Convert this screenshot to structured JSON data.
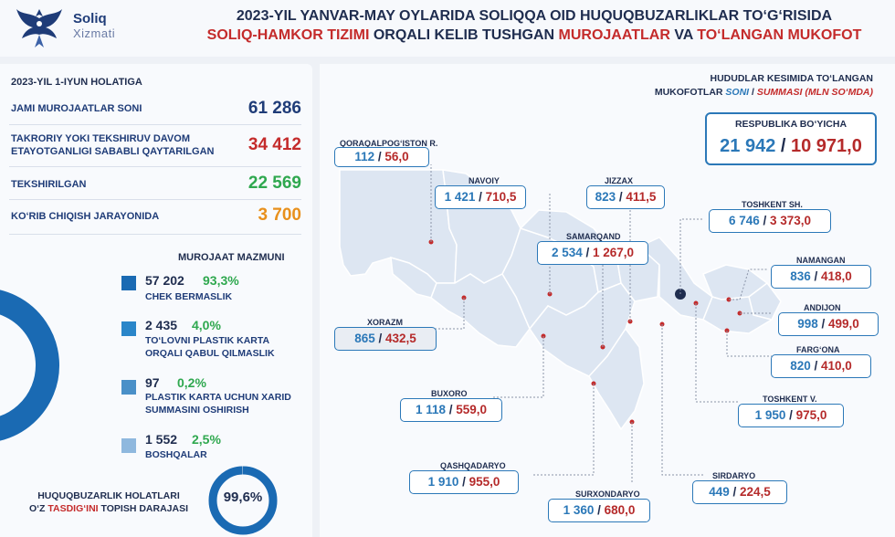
{
  "header": {
    "logo_word1": "Soliq",
    "logo_word2": "Xizmati",
    "title_line1": "2023-YIL YANVAR-MAY OYLARIDA SOLIQQA OID HUQUQBUZARLIKLAR TO‘G‘RISIDA",
    "title_line2_a": "SOLIQ-HAMKOR TIZIMI",
    "title_line2_b": " ORQALI KELIB TUSHGAN ",
    "title_line2_c": "MUROJAATLAR",
    "title_line2_d": " VA ",
    "title_line2_e": "TO‘LANGAN MUKOFOT"
  },
  "left": {
    "date_label": "2023-YIL 1-IYUN HOLATIGA",
    "stats": [
      {
        "label": "JAMI MUROJAATLAR SONI",
        "value": "61 286",
        "color": "#1f3c78"
      },
      {
        "label": "TAKRORIY YOKI TEKSHIRUV DAVOM ETAYOTGANLIGI SABABLI QAYTARILGAN",
        "value": "34 412",
        "color": "#c42b2b"
      },
      {
        "label": "TEKSHIRILGAN",
        "value": "22 569",
        "color": "#2fa84f"
      },
      {
        "label": "KO‘RIB CHIQISH JARAYONIDA",
        "value": "3 700",
        "color": "#e8901c"
      }
    ],
    "content_title": "MUROJAAT MAZMUNI",
    "legend": [
      {
        "count": "57 202",
        "pct": "93,3%",
        "text": "CHEK BERMASLIK",
        "color": "#1a6ab3"
      },
      {
        "count": "2 435",
        "pct": "4,0%",
        "text": "TO‘LOVNI PLASTIK KARTA ORQALI QABUL QILMASLIK",
        "color": "#2a86c9"
      },
      {
        "count": "97",
        "pct": "0,2%",
        "text": "PLASTIK KARTA UCHUN XARID SUMMASINI OSHIRISH",
        "color": "#4a90c8"
      },
      {
        "count": "1 552",
        "pct": "2,5%",
        "text": "BOSHQALAR",
        "color": "#8fb8de"
      }
    ],
    "bottom_label_a": "HUQUQBUZARLIK HOLATLARI",
    "bottom_label_b": "O‘Z ",
    "bottom_label_c": "TASDIG‘INI",
    "bottom_label_d": " TOPISH DARAJASI",
    "confirmation": "99,6%",
    "confirmation_fraction": 0.996
  },
  "right": {
    "map_title1": "HUDUDLAR KESIMIDA TO‘LANGAN",
    "map_title2_a": "MUKOFOTLAR ",
    "map_title2_b": "SONI",
    "map_title2_c": " / ",
    "map_title2_d": "SUMMASI (MLN SO‘MDA)",
    "republic_label": "RESPUBLIKA BO‘YICHA",
    "republic_count": "21 942",
    "republic_sum": "10 971,0",
    "regions": [
      {
        "name": "QORAQALPOG‘ISTON R.",
        "count": "112",
        "sum": "56,0"
      },
      {
        "name": "NAVOIY",
        "count": "1 421",
        "sum": "710,5"
      },
      {
        "name": "JIZZAX",
        "count": "823",
        "sum": "411,5"
      },
      {
        "name": "TOSHKENT SH.",
        "count": "6 746",
        "sum": "3 373,0"
      },
      {
        "name": "SAMARQAND",
        "count": "2 534",
        "sum": "1 267,0"
      },
      {
        "name": "NAMANGAN",
        "count": "836",
        "sum": "418,0"
      },
      {
        "name": "ANDIJON",
        "count": "998",
        "sum": "499,0"
      },
      {
        "name": "XORAZM",
        "count": "865",
        "sum": "432,5"
      },
      {
        "name": "FARG‘ONA",
        "count": "820",
        "sum": "410,0"
      },
      {
        "name": "BUXORO",
        "count": "1 118",
        "sum": "559,0"
      },
      {
        "name": "TOSHKENT V.",
        "count": "1 950",
        "sum": "975,0"
      },
      {
        "name": "QASHQADARYO",
        "count": "1 910",
        "sum": "955,0"
      },
      {
        "name": "SIRDARYO",
        "count": "449",
        "sum": "224,5"
      },
      {
        "name": "SURXONDARYO",
        "count": "1 360",
        "sum": "680,0"
      }
    ]
  }
}
